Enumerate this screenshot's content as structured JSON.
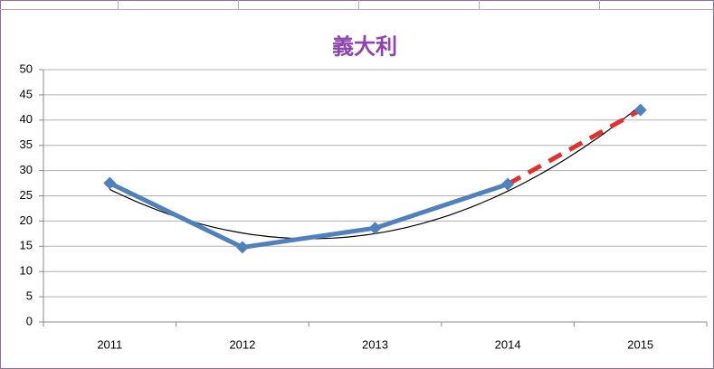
{
  "chart_data": {
    "type": "line",
    "title": "義大利",
    "categories": [
      "2011",
      "2012",
      "2013",
      "2014",
      "2015"
    ],
    "series": [
      {
        "color": "#4f81bd",
        "dash": false,
        "marker_color": "#4f81bd",
        "values": [
          27.5,
          14.8,
          18.6,
          27.3,
          null
        ]
      },
      {
        "color": "#e03030",
        "dash": true,
        "marker_color": "#4f81bd",
        "values": [
          null,
          null,
          null,
          27.3,
          42
        ]
      }
    ],
    "trendline": {
      "type": "polynomial",
      "order": 2,
      "color": "#000000"
    },
    "ylim": [
      0,
      50
    ],
    "yticks": [
      0,
      5,
      10,
      15,
      20,
      25,
      30,
      35,
      40,
      45,
      50
    ],
    "grid": true,
    "title_color": "#8e44ad"
  }
}
